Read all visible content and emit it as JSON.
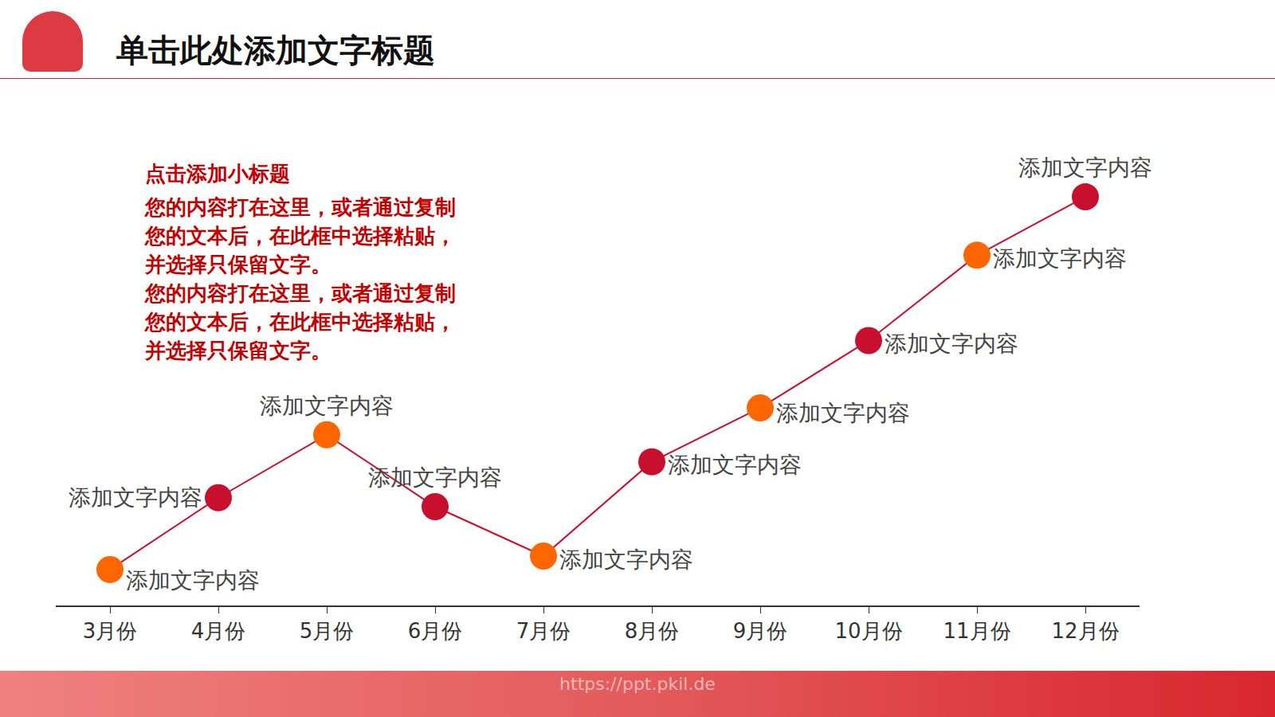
{
  "header": {
    "title": "单击此处添加文字标题"
  },
  "text_box": {
    "title": "点击添加小标题",
    "lines": [
      "您的内容打在这里，或者通过复制",
      "您的文本后，在此框中选择粘贴，",
      "并选择只保留文字。",
      "您的内容打在这里，或者通过复制",
      "您的文本后，在此框中选择粘贴，",
      "并选择只保留文字。"
    ]
  },
  "footer": {
    "url": "https://ppt.pkil.de"
  },
  "chart_data": {
    "type": "line",
    "categories": [
      "3月份",
      "4月份",
      "5月份",
      "6月份",
      "7月份",
      "8月份",
      "9月份",
      "10月份",
      "11月份",
      "12月份"
    ],
    "values": [
      8,
      24,
      38,
      22,
      11,
      32,
      44,
      59,
      78,
      91
    ],
    "annotations": [
      "添加文字内容",
      "添加文字内容",
      "添加文字内容",
      "添加文字内容",
      "添加文字内容",
      "添加文字内容",
      "添加文字内容",
      "添加文字内容",
      "添加文字内容",
      "添加文字内容"
    ],
    "color": "#c8102e",
    "colors": [
      "#ff6600",
      "#c8102e",
      "#ff6600",
      "#c8102e",
      "#ff6600",
      "#c8102e",
      "#ff6600",
      "#c8102e",
      "#ff6600",
      "#c8102e"
    ],
    "marker": "circle",
    "ylim": [
      0,
      110
    ],
    "grid": false,
    "tick_labels": "x"
  }
}
